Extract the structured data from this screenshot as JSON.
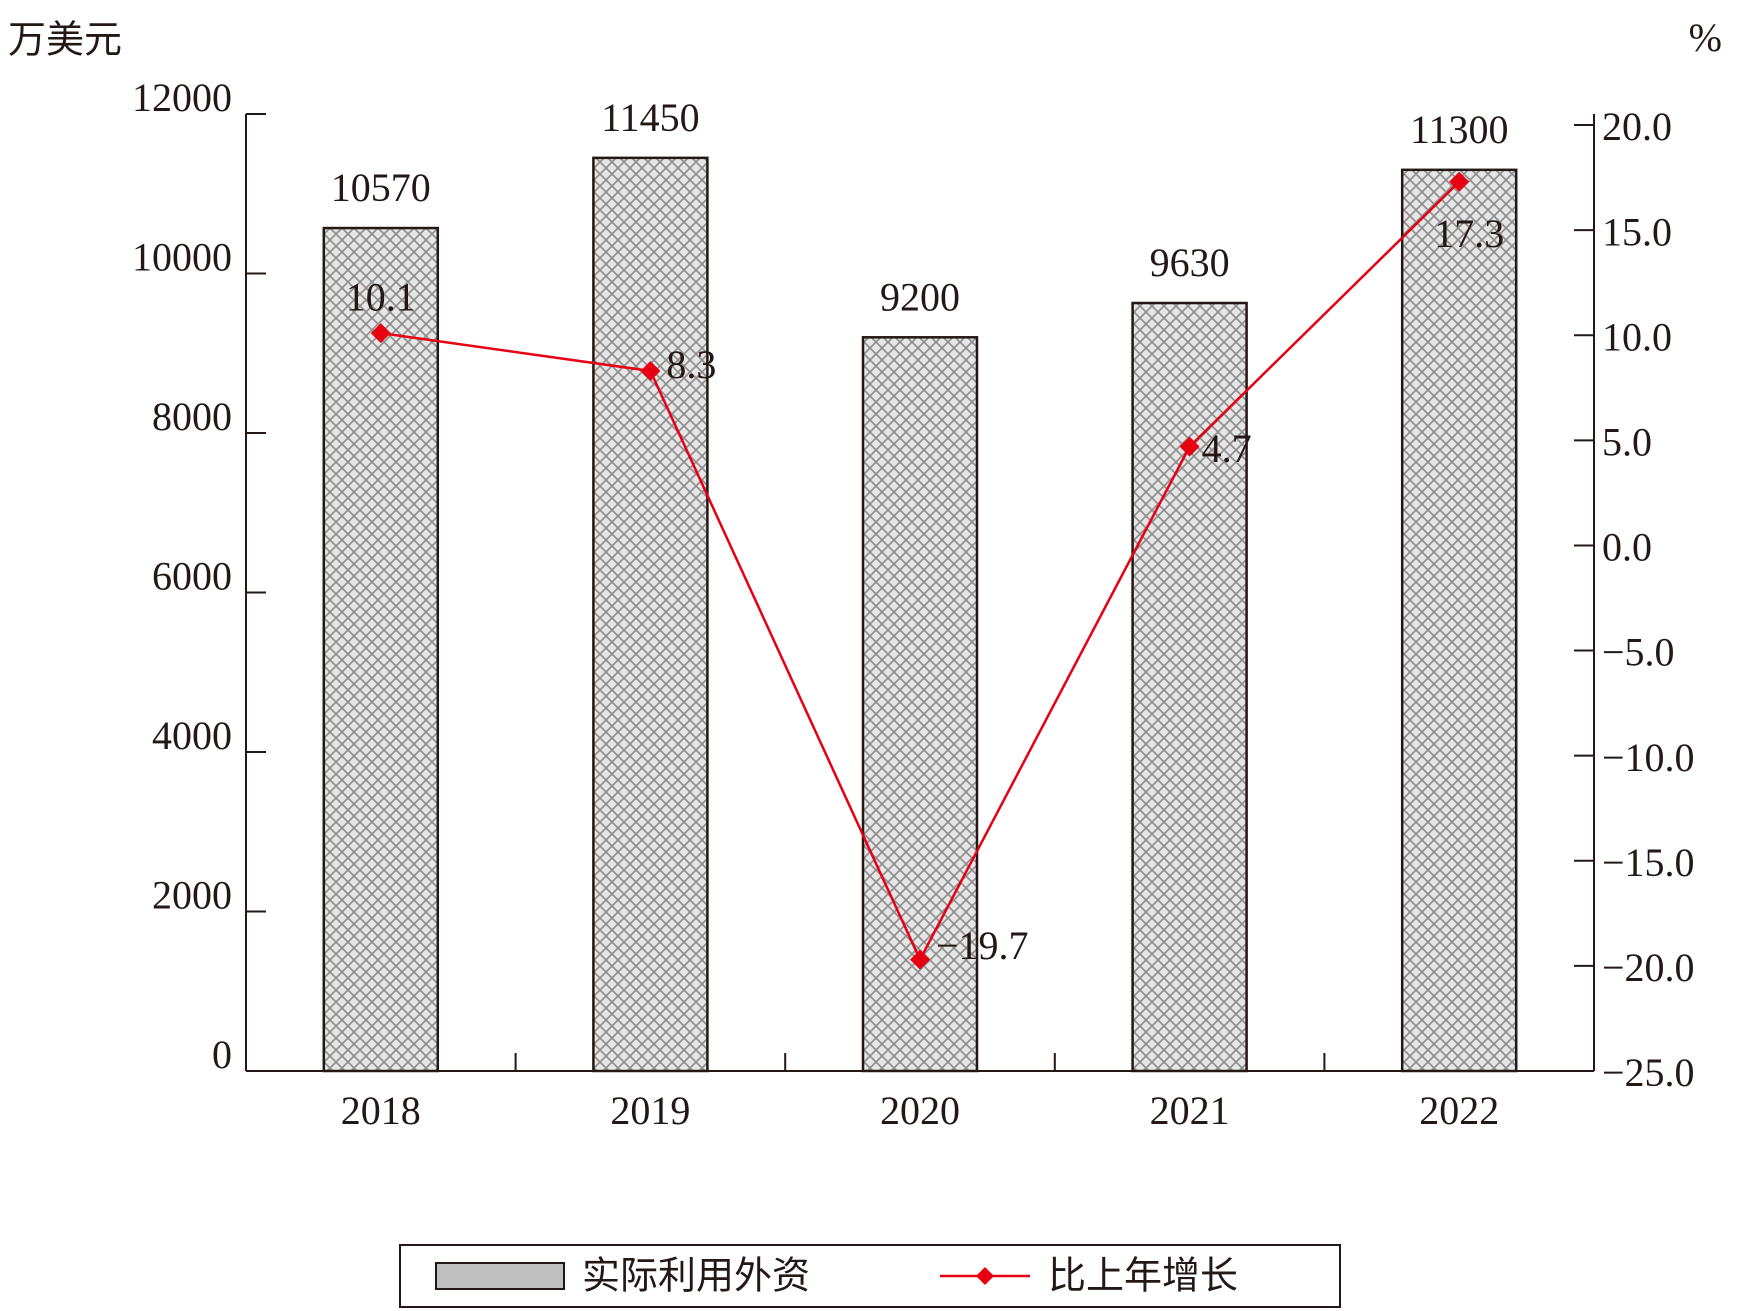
{
  "chart_data": {
    "type": "bar-line",
    "y_label": "万美元",
    "y2_label": "%",
    "categories": [
      "2018",
      "2019",
      "2020",
      "2021",
      "2022"
    ],
    "series": [
      {
        "name": "实际利用外资",
        "type": "bar",
        "color": "#bfbfbf",
        "values": [
          10570,
          11450,
          9200,
          9630,
          11300
        ]
      },
      {
        "name": "比上年增长",
        "type": "line",
        "axis": "y2",
        "color": "#e60012",
        "values": [
          10.1,
          8.3,
          -19.7,
          4.7,
          17.3
        ],
        "value_labels": [
          "10.1",
          "8.3",
          "−19.7",
          "4.7",
          "17.3"
        ]
      }
    ],
    "ylim": [
      0,
      12000
    ],
    "yticks": [
      0,
      2000,
      4000,
      6000,
      8000,
      10000,
      12000
    ],
    "y2lim": [
      -25,
      20
    ],
    "y2ticks": [
      {
        "value": -25,
        "label": "−25.0"
      },
      {
        "value": -20,
        "label": "−20.0"
      },
      {
        "value": -15,
        "label": "−15.0"
      },
      {
        "value": -10,
        "label": "−10.0"
      },
      {
        "value": -5,
        "label": "−5.0"
      },
      {
        "value": 0,
        "label": "0.0"
      },
      {
        "value": 5,
        "label": "5.0"
      },
      {
        "value": 10,
        "label": "10.0"
      },
      {
        "value": 15,
        "label": "15.0"
      },
      {
        "value": 20,
        "label": "20.0"
      }
    ],
    "legend": "bottom"
  }
}
